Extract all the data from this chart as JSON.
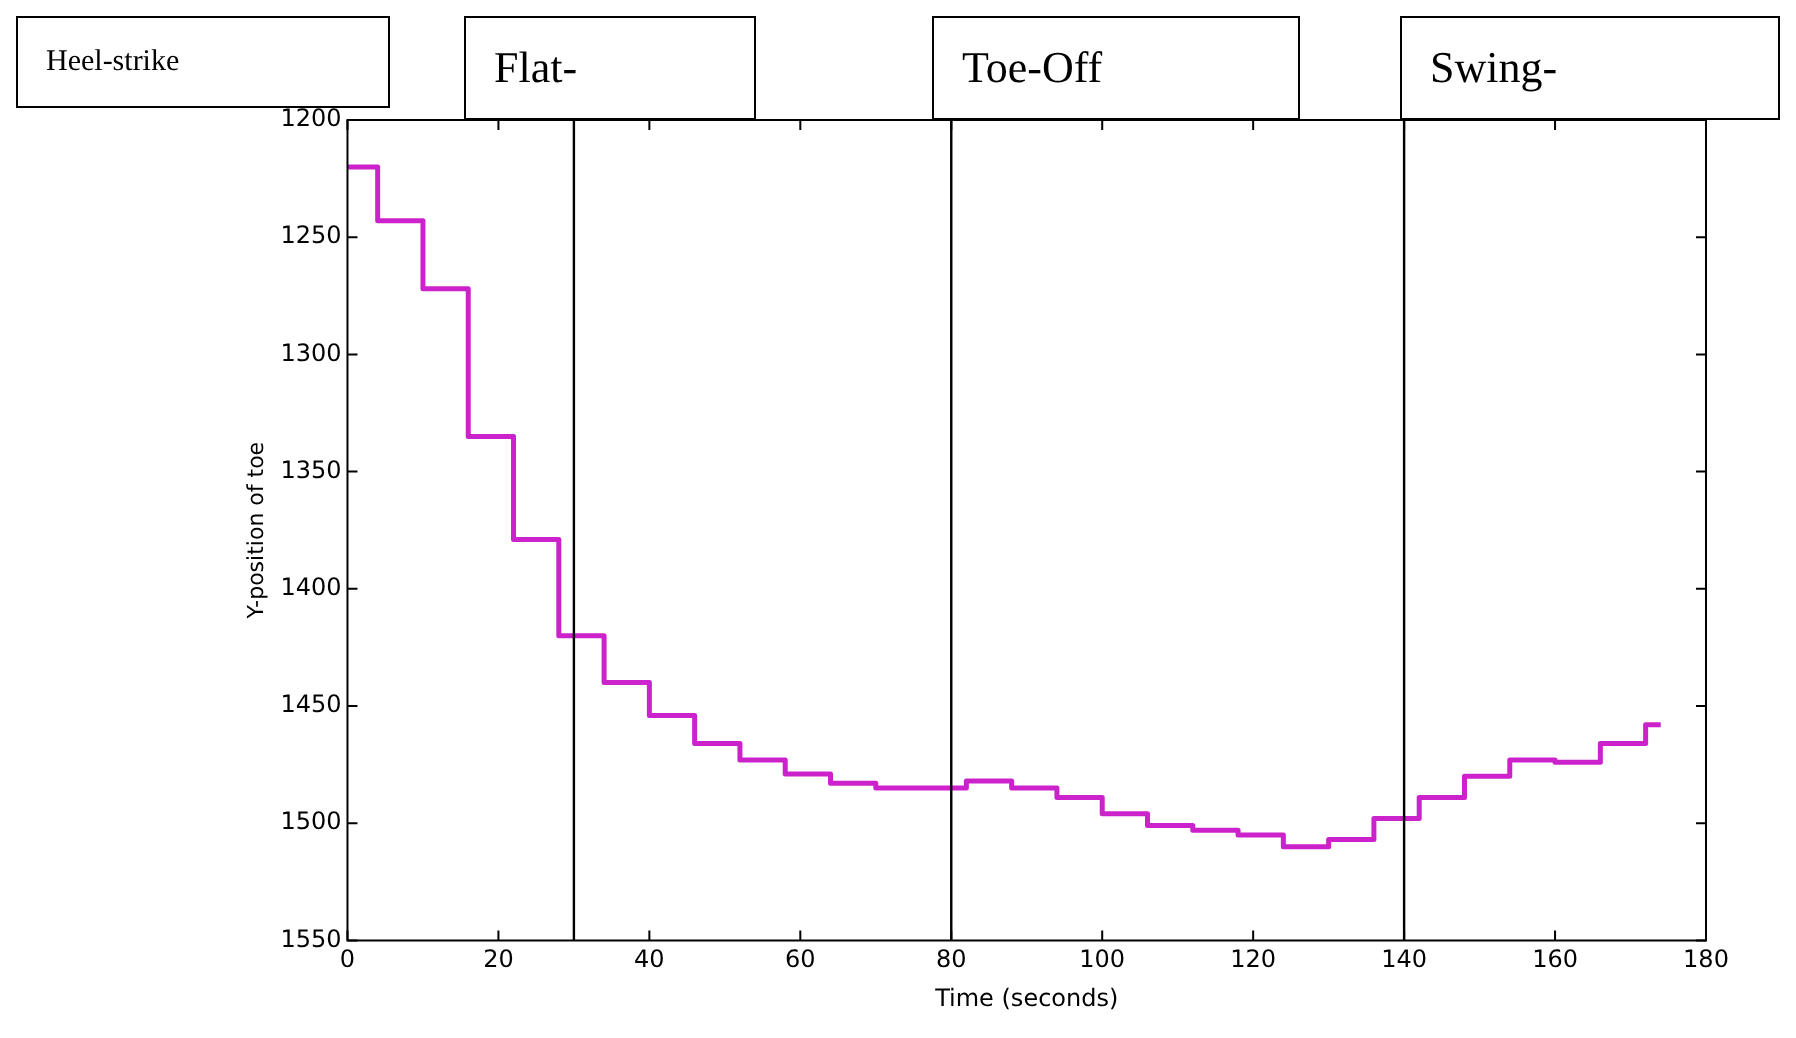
{
  "chart_data": {
    "type": "step",
    "xlabel": "Time (seconds)",
    "ylabel": "Y-position of toe",
    "annotations": [
      "Heel-strike",
      "Flat-",
      "Toe-Off",
      "Swing-"
    ],
    "x": [
      0,
      4,
      10,
      16,
      22,
      28,
      34,
      40,
      46,
      52,
      58,
      64,
      70,
      82,
      88,
      94,
      100,
      106,
      112,
      118,
      124,
      130,
      136,
      142,
      148,
      154,
      160,
      166,
      172,
      174
    ],
    "series": [
      {
        "color": "#cc22cc",
        "values": [
          1220,
          1243,
          1272,
          1335,
          1379,
          1420,
          1440,
          1454,
          1466,
          1473,
          1479,
          1483,
          1485,
          1482,
          1485,
          1489,
          1496,
          1501,
          1503,
          1505,
          1510,
          1507,
          1498,
          1489,
          1480,
          1473,
          1474,
          1466,
          1458,
          1458
        ]
      }
    ],
    "xlim": [
      0,
      180
    ],
    "xticks": [
      0,
      20,
      40,
      60,
      80,
      100,
      120,
      140,
      160,
      180
    ],
    "ylim": [
      1550,
      1200
    ],
    "yticks": [
      1200,
      1250,
      1300,
      1350,
      1400,
      1450,
      1500,
      1550
    ],
    "ref_lines": [
      {
        "axis": "x",
        "value": 30,
        "color": "#000000"
      },
      {
        "axis": "x",
        "value": 80,
        "color": "#000000"
      },
      {
        "axis": "x",
        "value": 140,
        "color": "#000000"
      }
    ],
    "grid": false,
    "legend": false,
    "marker": "none",
    "line_style": "solid"
  }
}
